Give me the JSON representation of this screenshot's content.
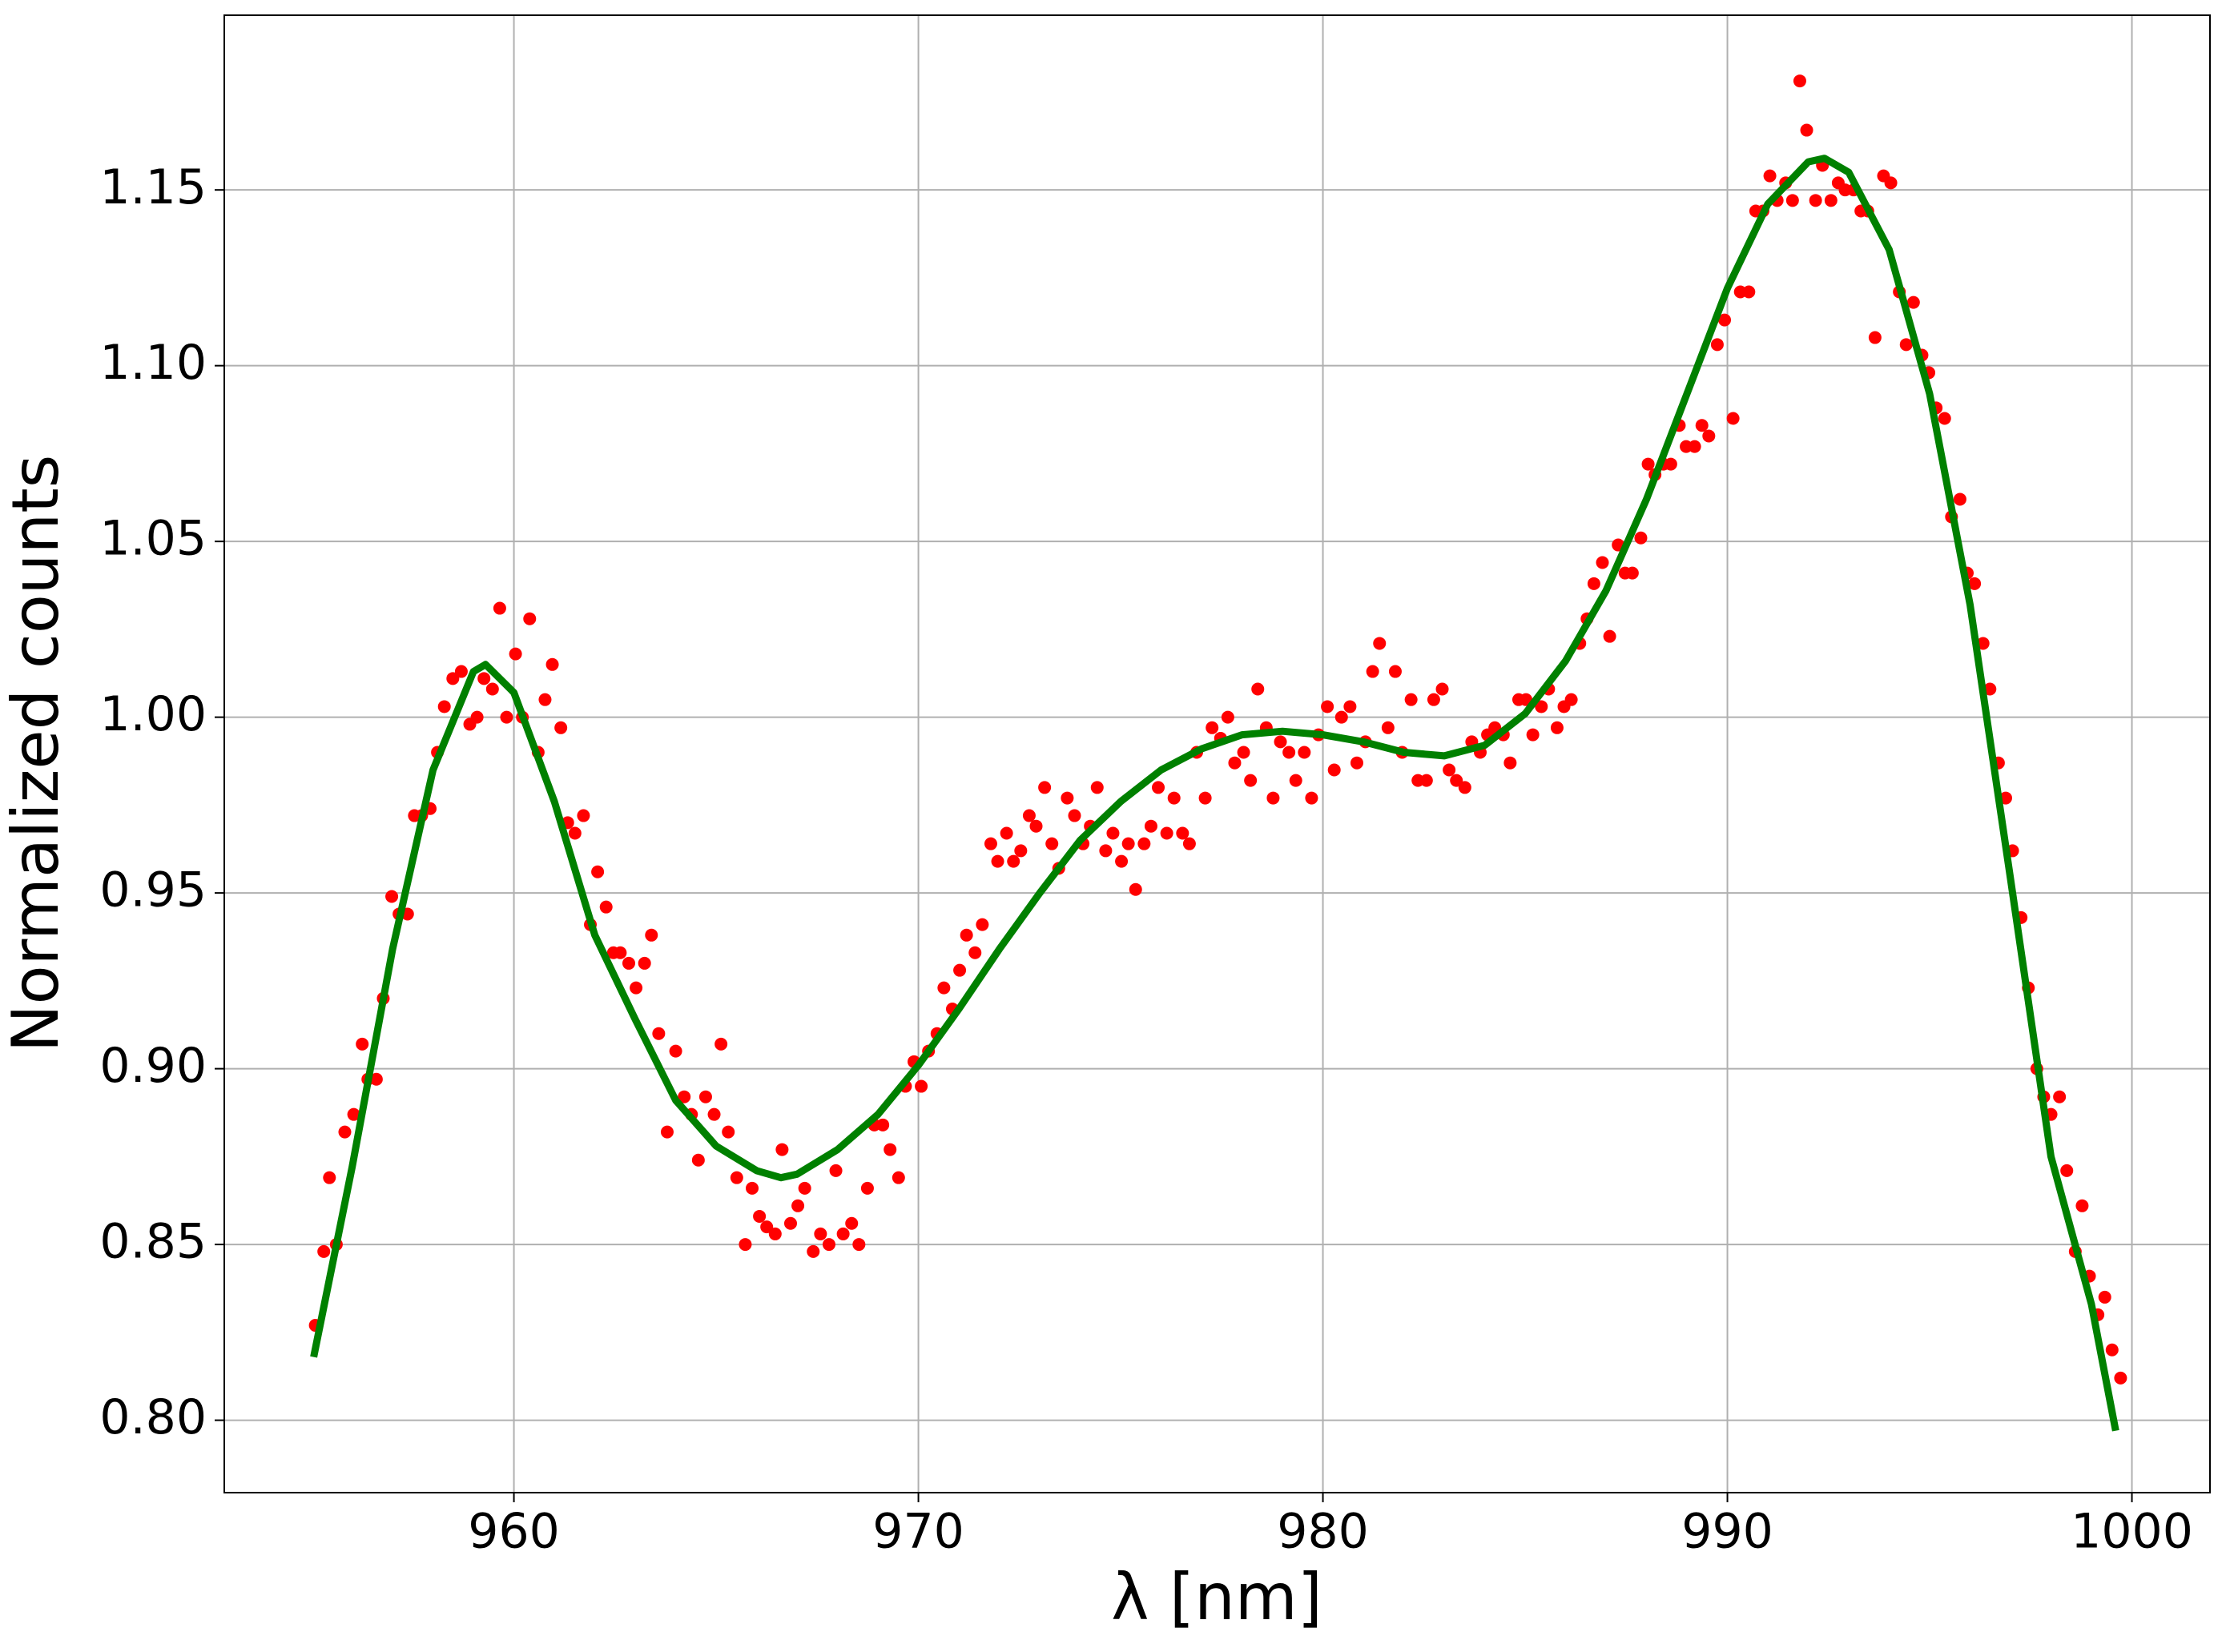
{
  "chart_data": {
    "type": "scatter",
    "xlabel": "λ [nm]",
    "ylabel": "Normalized counts",
    "xlim": [
      952.84,
      1001.93
    ],
    "ylim": [
      0.7794,
      1.1997
    ],
    "xticks": [
      960,
      970,
      980,
      990,
      1000
    ],
    "yticks": [
      {
        "value": 0.8,
        "label": "0.80"
      },
      {
        "value": 0.85,
        "label": "0.85"
      },
      {
        "value": 0.9,
        "label": "0.90"
      },
      {
        "value": 0.95,
        "label": "0.95"
      },
      {
        "value": 1.0,
        "label": "1.00"
      },
      {
        "value": 1.05,
        "label": "1.05"
      },
      {
        "value": 1.1,
        "label": "1.10"
      },
      {
        "value": 1.15,
        "label": "1.15"
      }
    ],
    "grid": true,
    "series": [
      {
        "color": "#ff0000",
        "style": "markers",
        "x": [
          955.09,
          955.3,
          955.44,
          955.61,
          955.82,
          956.04,
          956.25,
          956.39,
          956.6,
          956.77,
          956.98,
          957.16,
          957.37,
          957.54,
          957.72,
          957.93,
          958.11,
          958.28,
          958.49,
          958.7,
          958.91,
          959.09,
          959.26,
          959.47,
          959.65,
          959.82,
          960.04,
          960.21,
          960.39,
          960.6,
          960.77,
          960.95,
          961.16,
          961.33,
          961.51,
          961.72,
          961.89,
          962.07,
          962.28,
          962.46,
          962.63,
          962.84,
          963.02,
          963.23,
          963.4,
          963.58,
          963.79,
          964.0,
          964.21,
          964.39,
          964.56,
          964.74,
          964.95,
          965.12,
          965.3,
          965.51,
          965.72,
          965.89,
          966.07,
          966.25,
          966.46,
          966.63,
          966.84,
          967.02,
          967.19,
          967.4,
          967.58,
          967.79,
          967.96,
          968.14,
          968.35,
          968.53,
          968.74,
          968.91,
          969.12,
          969.3,
          969.51,
          969.68,
          969.89,
          970.07,
          970.25,
          970.46,
          970.63,
          970.84,
          971.02,
          971.19,
          971.4,
          971.58,
          971.79,
          971.96,
          972.18,
          972.35,
          972.53,
          972.74,
          972.91,
          973.12,
          973.3,
          973.47,
          973.68,
          973.86,
          974.07,
          974.25,
          974.42,
          974.63,
          974.81,
          975.02,
          975.19,
          975.37,
          975.58,
          975.75,
          975.93,
          976.14,
          976.32,
          976.53,
          976.7,
          976.88,
          977.09,
          977.26,
          977.47,
          977.65,
          977.82,
          978.04,
          978.21,
          978.39,
          978.6,
          978.77,
          978.95,
          979.16,
          979.33,
          979.54,
          979.72,
          979.89,
          980.11,
          980.28,
          980.46,
          980.67,
          980.84,
          981.05,
          981.23,
          981.4,
          981.61,
          981.79,
          981.96,
          982.18,
          982.35,
          982.56,
          982.74,
          982.95,
          983.12,
          983.3,
          983.51,
          983.68,
          983.89,
          984.07,
          984.25,
          984.46,
          984.63,
          984.84,
          985.02,
          985.19,
          985.4,
          985.58,
          985.79,
          985.96,
          986.14,
          986.35,
          986.53,
          986.7,
          986.91,
          987.09,
          987.3,
          987.47,
          987.65,
          987.86,
          988.04,
          988.21,
          988.42,
          988.6,
          988.81,
          988.98,
          989.19,
          989.37,
          989.54,
          989.75,
          989.93,
          990.14,
          990.32,
          990.53,
          990.7,
          990.88,
          991.05,
          991.23,
          991.44,
          991.61,
          991.79,
          991.96,
          992.18,
          992.35,
          992.56,
          992.74,
          992.91,
          993.12,
          993.3,
          993.47,
          993.65,
          993.86,
          994.04,
          994.25,
          994.42,
          994.6,
          994.81,
          994.98,
          995.16,
          995.37,
          995.54,
          995.75,
          995.93,
          996.11,
          996.32,
          996.49,
          996.7,
          996.88,
          997.05,
          997.26,
          997.44,
          997.65,
          997.82,
          998.0,
          998.21,
          998.39,
          998.6,
          998.77,
          998.95,
          999.16,
          999.33,
          999.51,
          999.72
        ],
        "values": [
          0.827,
          0.848,
          0.869,
          0.85,
          0.882,
          0.887,
          0.907,
          0.897,
          0.897,
          0.92,
          0.949,
          0.944,
          0.944,
          0.972,
          0.972,
          0.974,
          0.99,
          1.003,
          1.011,
          1.013,
          0.998,
          1.0,
          1.011,
          1.008,
          1.031,
          1.0,
          1.018,
          1.0,
          1.028,
          0.99,
          1.005,
          1.015,
          0.997,
          0.97,
          0.967,
          0.972,
          0.941,
          0.956,
          0.946,
          0.933,
          0.933,
          0.93,
          0.923,
          0.93,
          0.938,
          0.91,
          0.882,
          0.905,
          0.892,
          0.887,
          0.874,
          0.892,
          0.887,
          0.907,
          0.882,
          0.869,
          0.85,
          0.866,
          0.858,
          0.855,
          0.853,
          0.877,
          0.856,
          0.861,
          0.866,
          0.848,
          0.853,
          0.85,
          0.871,
          0.853,
          0.856,
          0.85,
          0.866,
          0.884,
          0.884,
          0.877,
          0.869,
          0.895,
          0.902,
          0.895,
          0.905,
          0.91,
          0.923,
          0.917,
          0.928,
          0.938,
          0.933,
          0.941,
          0.964,
          0.959,
          0.967,
          0.959,
          0.962,
          0.972,
          0.969,
          0.98,
          0.964,
          0.957,
          0.977,
          0.972,
          0.964,
          0.969,
          0.98,
          0.962,
          0.967,
          0.959,
          0.964,
          0.951,
          0.964,
          0.969,
          0.98,
          0.967,
          0.977,
          0.967,
          0.964,
          0.99,
          0.977,
          0.997,
          0.994,
          1.0,
          0.987,
          0.99,
          0.982,
          1.008,
          0.997,
          0.977,
          0.993,
          0.99,
          0.982,
          0.99,
          0.977,
          0.995,
          1.003,
          0.985,
          1.0,
          1.003,
          0.987,
          0.993,
          1.013,
          1.021,
          0.997,
          1.013,
          0.99,
          1.005,
          0.982,
          0.982,
          1.005,
          1.008,
          0.985,
          0.982,
          0.98,
          0.993,
          0.99,
          0.995,
          0.997,
          0.995,
          0.987,
          1.005,
          1.005,
          0.995,
          1.003,
          1.008,
          0.997,
          1.003,
          1.005,
          1.021,
          1.028,
          1.038,
          1.044,
          1.023,
          1.049,
          1.041,
          1.041,
          1.051,
          1.072,
          1.069,
          1.072,
          1.072,
          1.083,
          1.077,
          1.077,
          1.083,
          1.08,
          1.106,
          1.113,
          1.085,
          1.121,
          1.121,
          1.144,
          1.144,
          1.154,
          1.147,
          1.152,
          1.147,
          1.181,
          1.167,
          1.147,
          1.157,
          1.147,
          1.152,
          1.15,
          1.15,
          1.144,
          1.144,
          1.108,
          1.154,
          1.152,
          1.121,
          1.106,
          1.118,
          1.103,
          1.098,
          1.088,
          1.085,
          1.057,
          1.062,
          1.041,
          1.038,
          1.021,
          1.008,
          0.987,
          0.977,
          0.962,
          0.943,
          0.923,
          0.9,
          0.892,
          0.887,
          0.892,
          0.871,
          0.848,
          0.861,
          0.841,
          0.83,
          0.835,
          0.82,
          0.812
        ]
      },
      {
        "color": "#008000",
        "style": "line",
        "x": [
          955.05,
          956,
          957,
          958,
          959,
          959.3,
          960,
          961,
          962,
          963,
          964,
          965,
          966,
          966.6,
          967,
          968,
          969,
          970,
          971,
          972,
          973,
          974,
          975,
          976,
          977,
          978,
          979,
          980,
          981,
          982,
          983,
          984,
          985,
          986,
          987,
          988,
          989,
          990,
          991,
          992,
          992.4,
          993,
          994,
          995,
          996,
          997,
          998,
          999,
          999.6
        ],
        "values": [
          0.818,
          0.872,
          0.934,
          0.985,
          1.013,
          1.015,
          1.007,
          0.976,
          0.938,
          0.914,
          0.891,
          0.878,
          0.871,
          0.869,
          0.87,
          0.877,
          0.887,
          0.901,
          0.917,
          0.934,
          0.95,
          0.965,
          0.976,
          0.985,
          0.991,
          0.995,
          0.996,
          0.995,
          0.993,
          0.99,
          0.989,
          0.992,
          1.001,
          1.016,
          1.036,
          1.062,
          1.092,
          1.122,
          1.146,
          1.158,
          1.159,
          1.155,
          1.133,
          1.092,
          1.032,
          0.954,
          0.875,
          0.833,
          0.797
        ]
      }
    ]
  }
}
